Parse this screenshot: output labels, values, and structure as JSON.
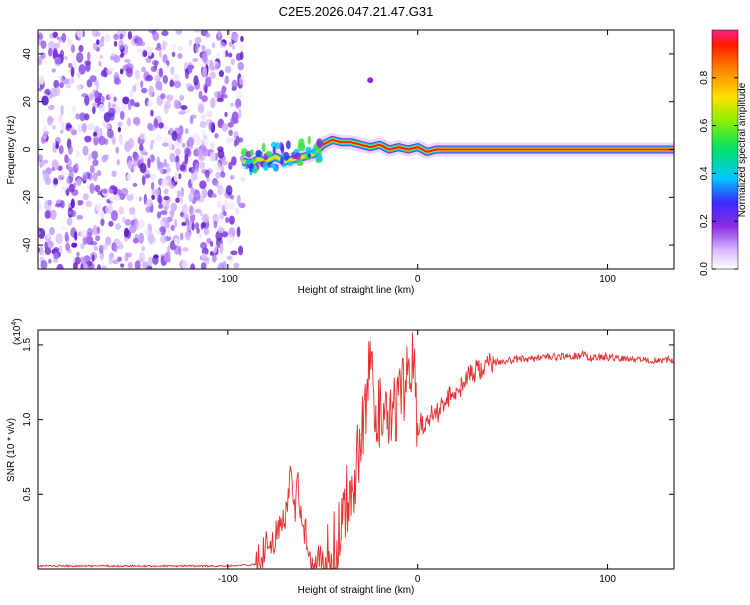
{
  "title": "C2E5.2026.047.21.47.G31",
  "chart_data": [
    {
      "type": "heatmap",
      "xlabel": "Height of straight line (km)",
      "ylabel": "Frequency (Hz)",
      "xlim": [
        -200,
        135
      ],
      "ylim": [
        -50,
        50
      ],
      "xticks": [
        -100,
        0,
        100
      ],
      "yticks": [
        -40,
        -20,
        0,
        20,
        40
      ],
      "colorbar": {
        "label": "Normalized spectral amplitude",
        "range": [
          0,
          1
        ],
        "ticks": [
          "0.0",
          "0.2",
          "0.4",
          "0.6",
          "0.8"
        ]
      },
      "noise_region_x": [
        -200,
        -92
      ],
      "frequency_track": [
        {
          "x": -92,
          "y": -5
        },
        {
          "x": -88,
          "y": -6
        },
        {
          "x": -84,
          "y": -4
        },
        {
          "x": -80,
          "y": -5
        },
        {
          "x": -75,
          "y": -3
        },
        {
          "x": -70,
          "y": -5
        },
        {
          "x": -65,
          "y": -4
        },
        {
          "x": -60,
          "y": -3
        },
        {
          "x": -55,
          "y": -2
        },
        {
          "x": -50,
          "y": 2
        },
        {
          "x": -45,
          "y": 4
        },
        {
          "x": -40,
          "y": 3
        },
        {
          "x": -35,
          "y": 3
        },
        {
          "x": -30,
          "y": 2
        },
        {
          "x": -25,
          "y": 1
        },
        {
          "x": -20,
          "y": 2
        },
        {
          "x": -15,
          "y": 0
        },
        {
          "x": -10,
          "y": 1
        },
        {
          "x": -5,
          "y": 0
        },
        {
          "x": 0,
          "y": 1
        },
        {
          "x": 5,
          "y": -1
        },
        {
          "x": 10,
          "y": 0
        },
        {
          "x": 15,
          "y": 0
        },
        {
          "x": 135,
          "y": 0
        }
      ],
      "isolated_spot": {
        "x": -25,
        "y": 29
      }
    },
    {
      "type": "line",
      "xlabel": "Height of straight line (km)",
      "ylabel": "SNR (10 * v/v)",
      "scale_note": "(x10",
      "scale_exp": "4",
      "scale_close": ")",
      "xlim": [
        -200,
        135
      ],
      "ylim": [
        0,
        1.6
      ],
      "xticks": [
        -100,
        0,
        100
      ],
      "yticks": [
        "0.5",
        "1.0",
        "1.5"
      ],
      "ytick_values": [
        0.5,
        1.0,
        1.5
      ],
      "color": "#e83030",
      "series": [
        {
          "name": "SNR",
          "x": [
            -200,
            -150,
            -100,
            -85,
            -80,
            -75,
            -70,
            -67,
            -65,
            -63,
            -60,
            -55,
            -50,
            -45,
            -35,
            -30,
            -27,
            -25,
            -22,
            -20,
            -15,
            -10,
            -5,
            -3,
            0,
            10,
            20,
            30,
            40,
            50,
            60,
            70,
            80,
            85,
            88,
            90,
            95,
            100,
            110,
            120,
            135
          ],
          "y": [
            0.02,
            0.02,
            0.02,
            0.03,
            0.15,
            0.22,
            0.3,
            0.65,
            0.35,
            0.55,
            0.28,
            0.06,
            0.04,
            0.06,
            0.55,
            0.9,
            1.1,
            1.55,
            0.85,
            1.05,
            0.95,
            1.1,
            1.25,
            1.5,
            0.95,
            1.05,
            1.2,
            1.32,
            1.38,
            1.4,
            1.41,
            1.42,
            1.42,
            1.43,
            1.45,
            1.41,
            1.42,
            1.42,
            1.41,
            1.4,
            1.4
          ]
        }
      ]
    }
  ]
}
